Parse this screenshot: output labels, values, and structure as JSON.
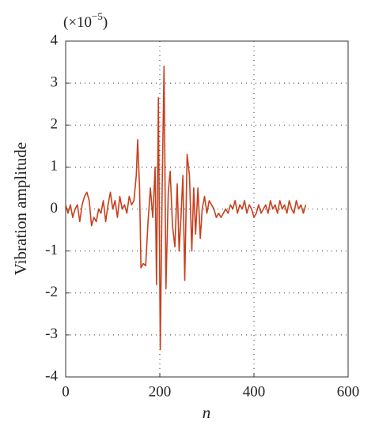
{
  "chart_data": {
    "type": "line",
    "multiplier": {
      "base": "(×10",
      "exponent": "−5",
      "close": ")"
    },
    "xlabel": "n",
    "ylabel": "Vibration amplitude",
    "xlim": [
      0,
      600
    ],
    "xticks": [
      0,
      200,
      400,
      600
    ],
    "ylim": [
      -4,
      4
    ],
    "yticks": [
      -4,
      -3,
      -2,
      -1,
      0,
      1,
      2,
      3,
      4
    ],
    "grid": true,
    "series": [
      {
        "color": "#c8401e",
        "x": [
          0,
          5,
          10,
          15,
          20,
          25,
          30,
          35,
          40,
          45,
          50,
          55,
          60,
          65,
          70,
          75,
          80,
          85,
          90,
          95,
          100,
          105,
          110,
          115,
          120,
          125,
          130,
          135,
          140,
          145,
          150,
          153,
          157,
          160,
          165,
          170,
          175,
          180,
          185,
          190,
          193,
          197,
          201,
          205,
          209,
          213,
          218,
          222,
          227,
          232,
          237,
          241,
          245,
          249,
          253,
          258,
          263,
          268,
          272,
          276,
          281,
          286,
          290,
          295,
          300,
          305,
          310,
          315,
          320,
          325,
          330,
          335,
          340,
          345,
          350,
          355,
          360,
          365,
          370,
          375,
          380,
          385,
          390,
          395,
          400,
          405,
          410,
          415,
          420,
          425,
          430,
          435,
          440,
          445,
          450,
          455,
          460,
          465,
          470,
          475,
          480,
          485,
          490,
          495,
          500,
          505,
          510
        ],
        "values": [
          0.1,
          -0.1,
          0.1,
          -0.2,
          0.0,
          0.1,
          -0.3,
          0.1,
          0.3,
          0.4,
          0.2,
          -0.4,
          -0.2,
          -0.3,
          0.0,
          -0.1,
          0.2,
          -0.3,
          0.1,
          0.4,
          0.0,
          0.2,
          -0.2,
          0.3,
          0.0,
          0.1,
          -0.1,
          0.3,
          0.1,
          0.2,
          0.8,
          1.65,
          0.5,
          -1.4,
          -1.3,
          -1.35,
          -0.3,
          0.5,
          -0.2,
          1.0,
          -1.8,
          2.65,
          -3.35,
          0.5,
          3.4,
          -1.9,
          0.4,
          0.9,
          -0.4,
          -0.9,
          0.6,
          -1.0,
          -0.2,
          0.8,
          -1.7,
          1.3,
          0.8,
          -1.0,
          0.5,
          -0.6,
          0.5,
          -0.7,
          0.0,
          0.3,
          -0.1,
          0.2,
          0.1,
          0.0,
          -0.2,
          -0.1,
          -0.2,
          -0.1,
          0.0,
          -0.1,
          0.1,
          0.0,
          0.2,
          -0.1,
          0.1,
          0.0,
          0.2,
          -0.1,
          0.1,
          0.0,
          -0.2,
          -0.1,
          0.1,
          -0.1,
          0.0,
          0.1,
          -0.1,
          0.2,
          0.0,
          0.1,
          -0.1,
          0.2,
          0.0,
          0.1,
          -0.1,
          0.2,
          0.0,
          -0.1,
          0.2,
          0.0,
          0.1,
          -0.1,
          0.1
        ]
      }
    ]
  }
}
